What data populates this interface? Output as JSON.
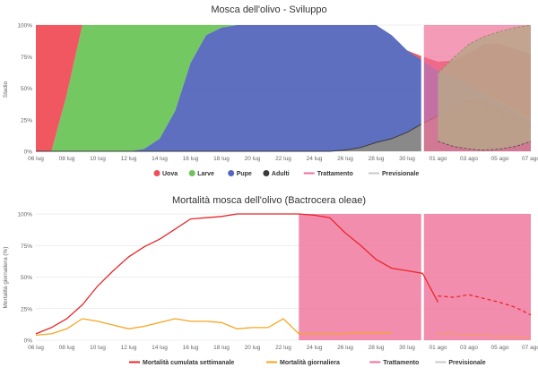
{
  "colors": {
    "uova": "#f04e58",
    "larve": "#6cc55a",
    "pupe": "#5567bd",
    "adulti": "#3b3b3b",
    "trattamento": "#f0709a",
    "previsionale": "#c8c8c8",
    "mortalita_cum": "#e8282a",
    "mortalita_gio": "#f5a623"
  },
  "chart_data": [
    {
      "type": "area",
      "title": "Mosca dell'olivo - Sviluppo",
      "ylabel": "Stadio",
      "xlabel": "",
      "ylim": [
        0,
        100
      ],
      "y_ticks": [
        "0%",
        "25%",
        "50%",
        "75%",
        "100%"
      ],
      "x_ticks": [
        "06 lug",
        "08 lug",
        "10 lug",
        "12 lug",
        "14 lug",
        "16 lug",
        "18 lug",
        "20 lug",
        "22 lug",
        "24 lug",
        "26 lug",
        "28 lug",
        "30 lug",
        "01 ago",
        "03 ago",
        "05 ago",
        "07 ago"
      ],
      "x_start": "2023-07-06",
      "x_end": "2023-08-07",
      "stacked": true,
      "series": [
        {
          "name": "Uova",
          "color_key": "uova",
          "x": [
            0,
            1,
            2,
            3,
            4,
            5,
            6,
            7,
            8,
            9,
            10,
            11,
            12,
            13,
            14,
            15,
            16,
            17,
            18,
            19,
            20,
            21,
            22,
            23,
            24,
            25,
            26,
            27,
            28,
            29,
            30,
            31,
            32
          ],
          "values": [
            100,
            100,
            55,
            0,
            0,
            0,
            0,
            0,
            0,
            0,
            0,
            0,
            0,
            0,
            0,
            0,
            0,
            0,
            0,
            0,
            0,
            0,
            0,
            0,
            0,
            3,
            7,
            13,
            25,
            38,
            45,
            48,
            50
          ]
        },
        {
          "name": "Larve",
          "color_key": "larve",
          "x": [
            0,
            1,
            2,
            3,
            4,
            5,
            6,
            7,
            8,
            9,
            10,
            11,
            12,
            13,
            14,
            15,
            16,
            17,
            18,
            19,
            20,
            21,
            22,
            23,
            24,
            25,
            26,
            27,
            28,
            29,
            30,
            31,
            32
          ],
          "values": [
            0,
            0,
            45,
            100,
            100,
            100,
            100,
            98,
            90,
            68,
            30,
            8,
            2,
            0,
            0,
            0,
            0,
            0,
            0,
            0,
            0,
            0,
            0,
            0,
            0,
            0,
            0,
            0,
            0,
            1,
            2,
            2,
            3
          ]
        },
        {
          "name": "Pupe",
          "color_key": "pupe",
          "x": [
            0,
            1,
            2,
            3,
            4,
            5,
            6,
            7,
            8,
            9,
            10,
            11,
            12,
            13,
            14,
            15,
            16,
            17,
            18,
            19,
            20,
            21,
            22,
            23,
            24,
            25,
            26,
            27,
            28,
            29,
            30,
            31,
            32
          ],
          "values": [
            0,
            0,
            0,
            0,
            0,
            0,
            0,
            2,
            10,
            32,
            70,
            92,
            98,
            100,
            100,
            100,
            100,
            100,
            100,
            100,
            99,
            97,
            93,
            82,
            65,
            50,
            36,
            23,
            13,
            8,
            6,
            5,
            4
          ]
        },
        {
          "name": "Adulti",
          "color_key": "adulti",
          "x": [
            0,
            1,
            2,
            3,
            4,
            5,
            6,
            7,
            8,
            9,
            10,
            11,
            12,
            13,
            14,
            15,
            16,
            17,
            18,
            19,
            20,
            21,
            22,
            23,
            24,
            25,
            26,
            27,
            28,
            29,
            30,
            31,
            32
          ],
          "values": [
            0,
            0,
            0,
            0,
            0,
            0,
            0,
            0,
            0,
            0,
            0,
            0,
            0,
            0,
            0,
            0,
            0,
            0,
            0,
            0,
            1,
            3,
            7,
            10,
            15,
            22,
            28,
            36,
            40,
            38,
            32,
            26,
            20
          ]
        }
      ],
      "trattamento": {
        "from": "2023-07-31",
        "to": "2023-08-07"
      },
      "previsionale": {
        "from": "2023-07-31",
        "to": "2023-08-07"
      },
      "legend": [
        "Uova",
        "Larve",
        "Pupe",
        "Adulti",
        "Trattamento",
        "Previsionale"
      ],
      "legend_position": "bottom"
    },
    {
      "type": "line",
      "title": "Mortalità mosca dell'olivo (Bactrocera oleae)",
      "ylabel": "Mortalità giornaliera (%)",
      "xlabel": "",
      "ylim": [
        0,
        100
      ],
      "y_ticks": [
        "0%",
        "25%",
        "50%",
        "75%",
        "100%"
      ],
      "x_ticks": [
        "06 lug",
        "08 lug",
        "10 lug",
        "12 lug",
        "14 lug",
        "16 lug",
        "18 lug",
        "20 lug",
        "22 lug",
        "24 lug",
        "26 lug",
        "28 lug",
        "30 lug",
        "01 ago",
        "03 ago",
        "05 ago",
        "07 ago"
      ],
      "series": [
        {
          "name": "Mortalità cumulata settimanale",
          "color_key": "mortalita_cum",
          "x": [
            0,
            1,
            2,
            3,
            4,
            5,
            6,
            7,
            8,
            9,
            10,
            11,
            12,
            13,
            14,
            15,
            16,
            17,
            18,
            19,
            20,
            21,
            22,
            23,
            24,
            25,
            26,
            27,
            28,
            29,
            30
          ],
          "values": [
            5,
            10,
            17,
            28,
            43,
            55,
            66,
            74,
            80,
            88,
            96,
            97,
            98,
            100,
            100,
            100,
            100,
            100,
            99,
            97,
            85,
            75,
            64,
            57,
            55,
            53,
            30,
            null,
            null,
            null,
            null
          ]
        },
        {
          "name": "Mortalità giornaliera",
          "color_key": "mortalita_gio",
          "x": [
            0,
            1,
            2,
            3,
            4,
            5,
            6,
            7,
            8,
            9,
            10,
            11,
            12,
            13,
            14,
            15,
            16,
            17,
            18,
            19,
            20,
            21,
            22,
            23,
            24,
            25,
            26
          ],
          "values": [
            4,
            5,
            9,
            17,
            15,
            12,
            9,
            11,
            14,
            17,
            15,
            15,
            14,
            9,
            10,
            10,
            17,
            5,
            5,
            5,
            5,
            6,
            6,
            6,
            null,
            null,
            null
          ]
        }
      ],
      "forecast_cumulata": {
        "x": [
          26,
          27,
          28,
          29,
          30,
          31,
          32
        ],
        "values": [
          35,
          34,
          36,
          33,
          30,
          26,
          20
        ]
      },
      "forecast_giornaliera": {
        "x": [
          26,
          27,
          28,
          29,
          30,
          31,
          32
        ],
        "values": [
          5,
          5,
          4,
          4,
          3,
          3,
          2
        ]
      },
      "trattamento": {
        "from": "2023-07-23",
        "to": "2023-08-07"
      },
      "previsionale": {
        "from": "2023-07-31",
        "to": "2023-08-07"
      },
      "legend": [
        "Mortalità cumulata settimanale",
        "Mortalità giornaliera",
        "Trattamento",
        "Previsionale"
      ],
      "legend_position": "bottom"
    }
  ]
}
